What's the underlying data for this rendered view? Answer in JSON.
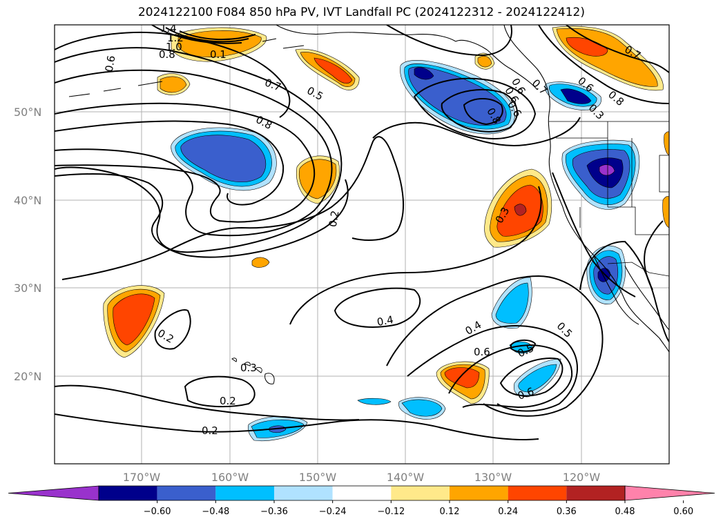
{
  "title": "2024122100 F084 850 hPa PV, IVT Landfall PC (2024122312 - 2024122412)",
  "lat_labels": [
    "50°N",
    "40°N",
    "30°N",
    "20°N"
  ],
  "lon_labels": [
    "170°W",
    "160°W",
    "150°W",
    "140°W",
    "130°W",
    "120°W"
  ],
  "contour_labels": [
    "1.4",
    "1.2",
    "1.0",
    "0.8",
    "0.6",
    "0.1",
    "0.7",
    "0.5",
    "0.8",
    "0.2",
    "0.6",
    "0.8",
    "0.6",
    "0.8",
    "0.7",
    "0.6",
    "0.3",
    "0.3",
    "0.2",
    "0.3",
    "0.2",
    "0.2",
    "0.4",
    "0.4",
    "0.6",
    "0.5",
    "0.5",
    "0.6",
    "0.7",
    "0.6"
  ],
  "colorbar": {
    "ticks": [
      "−0.60",
      "−0.48",
      "−0.36",
      "−0.24",
      "−0.12",
      "0.12",
      "0.24",
      "0.36",
      "0.48",
      "0.60"
    ],
    "colors": [
      "#9932cc",
      "#00008b",
      "#3a5fcd",
      "#00bfff",
      "#b0e2ff",
      "#ffffff",
      "#ffe98a",
      "#ffa500",
      "#ff4500",
      "#b22222",
      "#ff82ab"
    ]
  },
  "legend": {
    "ticks": [
      "−0.60",
      "−0.48",
      "−0.36",
      "−0.24",
      "−0.12",
      "0.12",
      "0.24",
      "0.36",
      "0.48",
      "0.60"
    ],
    "colors": [
      "#9932cc",
      "#00008b",
      "#3a5fcd",
      "#00bfff",
      "#b0e2ff",
      "#ffffff",
      "#ffe98a",
      "#ffa500",
      "#ff4500",
      "#b22222",
      "#ff82ab"
    ]
  }
}
